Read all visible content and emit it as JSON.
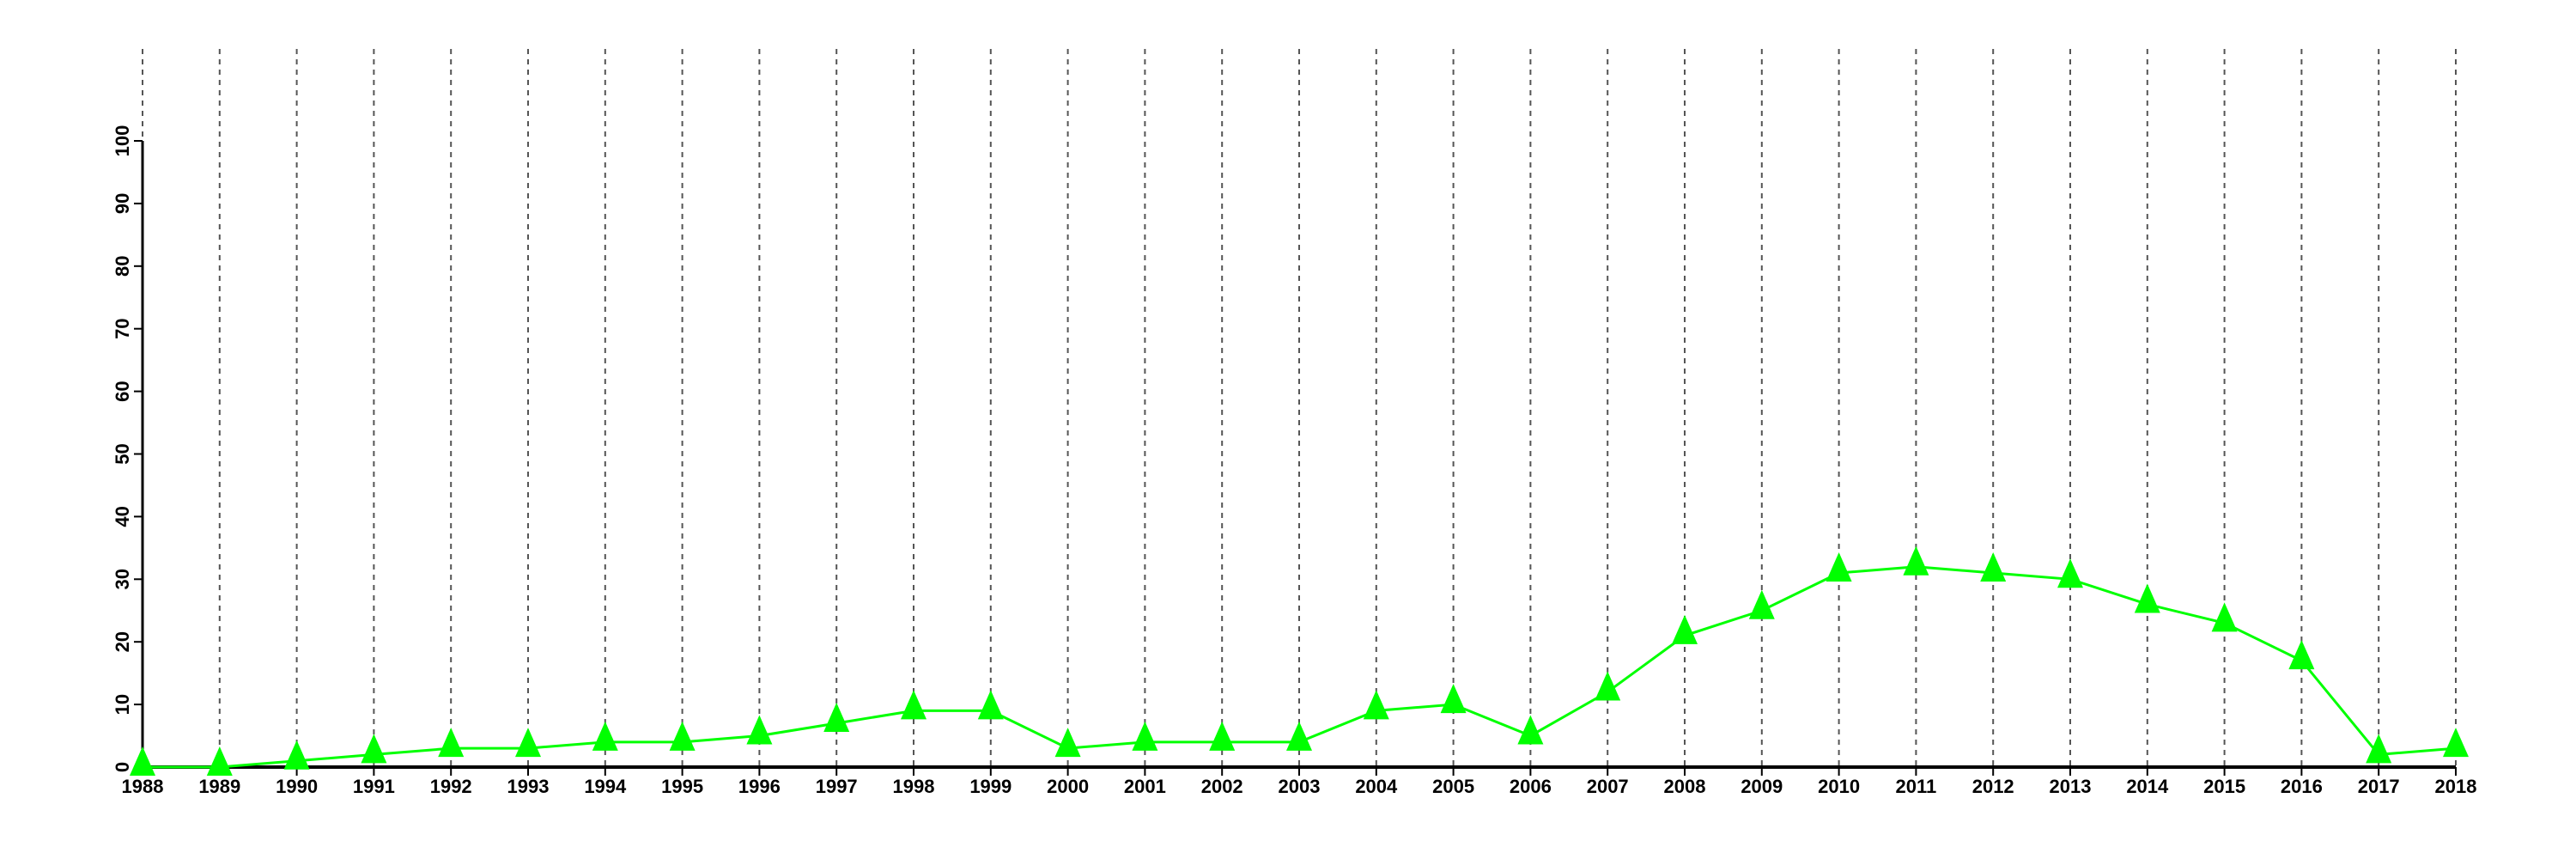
{
  "chart_data": {
    "type": "line",
    "title": "",
    "xlabel": "",
    "ylabel": "",
    "x": [
      1988,
      1989,
      1990,
      1991,
      1992,
      1993,
      1994,
      1995,
      1996,
      1997,
      1998,
      1999,
      2000,
      2001,
      2002,
      2003,
      2004,
      2005,
      2006,
      2007,
      2008,
      2009,
      2010,
      2011,
      2012,
      2013,
      2014,
      2015,
      2016,
      2017,
      2018
    ],
    "series": [
      {
        "values": [
          0,
          0,
          1,
          2,
          3,
          3,
          4,
          4,
          5,
          7,
          9,
          9,
          3,
          4,
          4,
          4,
          9,
          10,
          5,
          12,
          21,
          25,
          31,
          32,
          31,
          30,
          26,
          23,
          17,
          2,
          3
        ],
        "color": "#00ff00",
        "marker": "triangle"
      }
    ],
    "xlim": [
      1988,
      2018
    ],
    "ylim": [
      0,
      100
    ],
    "yticks": [
      0,
      10,
      20,
      30,
      40,
      50,
      60,
      70,
      80,
      90,
      100
    ],
    "grid": "vertical dashed",
    "legend": "none"
  }
}
